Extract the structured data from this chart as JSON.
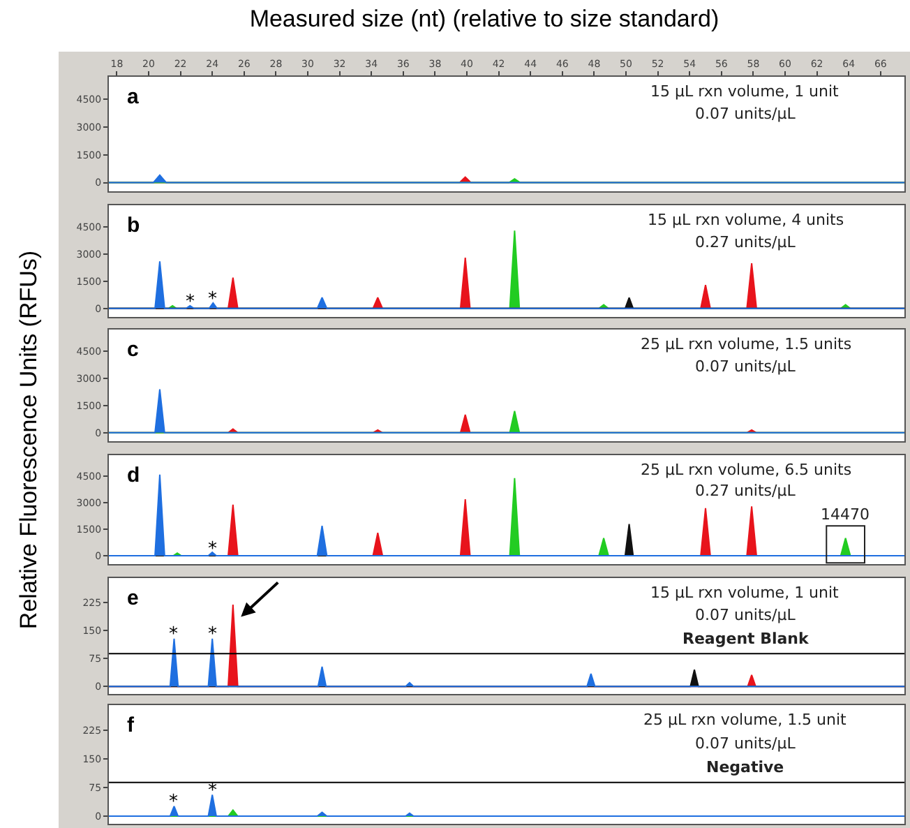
{
  "chart_data": [
    {
      "type": "area",
      "title": "a",
      "xlabel": "Measured size (nt) (relative to size standard)",
      "ylabel": "Relative Fluorescence Units (RFUs)",
      "xlim": [
        17.5,
        67.5
      ],
      "xticks": [
        18,
        20,
        22,
        24,
        26,
        28,
        30,
        32,
        34,
        36,
        38,
        40,
        42,
        44,
        46,
        48,
        50,
        52,
        54,
        56,
        58,
        60,
        62,
        64,
        66
      ],
      "ylim": [
        -470,
        5700
      ],
      "yticks": [
        0,
        1500,
        3000,
        4500
      ],
      "annotations": [
        "15 µL rxn volume, 1 unit",
        "0.07 units/µL"
      ],
      "series": [
        {
          "color": "#e8141c",
          "x": [
            17.5,
            39.55,
            39.9,
            40.25,
            67.5
          ],
          "values": [
            0,
            0,
            300,
            0,
            0
          ]
        },
        {
          "color": "#22cc22",
          "x": [
            17.5,
            42.65,
            43.0,
            43.35,
            67.5
          ],
          "values": [
            0,
            0,
            200,
            0,
            0
          ]
        },
        {
          "color": "#1f6fe0",
          "x": [
            17.5,
            20.3,
            20.7,
            21.1,
            67.5
          ],
          "values": [
            0,
            0,
            400,
            0,
            0
          ]
        }
      ]
    },
    {
      "type": "area",
      "title": "b",
      "xlim": [
        17.5,
        67.5
      ],
      "ylim": [
        -470,
        5700
      ],
      "yticks": [
        0,
        1500,
        3000,
        4500
      ],
      "tick_labels": "y",
      "annotations": [
        "15 µL rxn volume, 4 units",
        "0.27 units/µL",
        {
          "text": "*",
          "x": 22.6,
          "y": 150
        },
        {
          "text": "*",
          "x": 24.05,
          "y": 300
        }
      ],
      "series": [
        {
          "color": "#22cc22",
          "x": [
            17.5,
            21.25,
            21.5,
            21.75,
            42.7,
            43.0,
            43.3,
            48.3,
            48.6,
            48.9,
            63.5,
            63.8,
            64.1,
            67.5
          ],
          "values": [
            0,
            0,
            150,
            0,
            0,
            4300,
            0,
            0,
            200,
            0,
            0,
            200,
            0,
            0
          ]
        },
        {
          "color": "#e8141c",
          "x": [
            17.5,
            25.0,
            25.3,
            25.6,
            34.1,
            34.4,
            34.7,
            39.6,
            39.9,
            40.2,
            54.7,
            55.0,
            55.3,
            57.6,
            57.9,
            58.2,
            67.5
          ],
          "values": [
            0,
            0,
            1700,
            0,
            0,
            600,
            0,
            0,
            2800,
            0,
            0,
            1300,
            0,
            0,
            2500,
            0,
            0
          ]
        },
        {
          "color": "#111111",
          "x": [
            17.5,
            49.95,
            50.2,
            50.45,
            67.5
          ],
          "values": [
            0,
            0,
            600,
            0,
            0
          ]
        },
        {
          "color": "#1f6fe0",
          "x": [
            17.5,
            20.4,
            20.7,
            21.0,
            22.35,
            22.6,
            22.85,
            23.8,
            24.05,
            24.3,
            30.6,
            30.9,
            31.2,
            67.5
          ],
          "values": [
            0,
            0,
            2600,
            0,
            0,
            150,
            0,
            0,
            300,
            0,
            0,
            600,
            0,
            0
          ]
        }
      ]
    },
    {
      "type": "area",
      "title": "c",
      "xlim": [
        17.5,
        67.5
      ],
      "ylim": [
        -470,
        5700
      ],
      "yticks": [
        0,
        1500,
        3000,
        4500
      ],
      "tick_labels": "y",
      "annotations": [
        "25 µL rxn volume, 1.5 units",
        "0.07 units/µL"
      ],
      "series": [
        {
          "color": "#e8141c",
          "x": [
            17.5,
            25.0,
            25.3,
            25.6,
            34.1,
            34.4,
            34.7,
            39.6,
            39.9,
            40.2,
            57.6,
            57.9,
            58.2,
            67.5
          ],
          "values": [
            0,
            0,
            200,
            0,
            0,
            150,
            0,
            0,
            1000,
            0,
            0,
            150,
            0,
            0
          ]
        },
        {
          "color": "#22cc22",
          "x": [
            17.5,
            42.7,
            43.0,
            43.3,
            67.5
          ],
          "values": [
            0,
            0,
            1200,
            0,
            0
          ]
        },
        {
          "color": "#1f6fe0",
          "x": [
            17.5,
            20.4,
            20.7,
            21.0,
            67.5
          ],
          "values": [
            0,
            0,
            2400,
            0,
            0
          ]
        }
      ]
    },
    {
      "type": "area",
      "title": "d",
      "xlim": [
        17.5,
        67.5
      ],
      "ylim": [
        -470,
        5700
      ],
      "yticks": [
        0,
        1500,
        3000,
        4500
      ],
      "tick_labels": "y",
      "annotations": [
        "25 µL rxn volume, 6.5 units",
        "0.27 units/µL",
        {
          "text": "*",
          "x": 24.0,
          "y": 200
        },
        {
          "text": "14470",
          "x": 63.8,
          "y": 1000
        }
      ],
      "series": [
        {
          "color": "#22cc22",
          "x": [
            17.5,
            21.55,
            21.8,
            22.05,
            42.7,
            43.0,
            43.3,
            48.3,
            48.6,
            48.9,
            63.5,
            63.8,
            64.1,
            67.5
          ],
          "values": [
            0,
            0,
            150,
            0,
            0,
            4400,
            0,
            0,
            1000,
            0,
            0,
            1000,
            0,
            0
          ]
        },
        {
          "color": "#e8141c",
          "x": [
            17.5,
            25.0,
            25.3,
            25.6,
            34.1,
            34.4,
            34.7,
            39.6,
            39.9,
            40.2,
            54.7,
            55.0,
            55.3,
            57.6,
            57.9,
            58.2,
            67.5
          ],
          "values": [
            0,
            0,
            2900,
            0,
            0,
            1300,
            0,
            0,
            3200,
            0,
            0,
            2700,
            0,
            0,
            2800,
            0,
            0
          ]
        },
        {
          "color": "#111111",
          "x": [
            17.5,
            49.95,
            50.2,
            50.45,
            67.5
          ],
          "values": [
            0,
            0,
            1800,
            0,
            0
          ]
        },
        {
          "color": "#1f6fe0",
          "x": [
            17.5,
            20.4,
            20.7,
            21.0,
            23.75,
            24.0,
            24.25,
            30.6,
            30.9,
            31.2,
            67.5
          ],
          "values": [
            0,
            0,
            4600,
            0,
            0,
            200,
            0,
            0,
            1700,
            0,
            0
          ]
        }
      ]
    },
    {
      "type": "area",
      "title": "e",
      "xlim": [
        17.5,
        67.5
      ],
      "ylim": [
        -20,
        290
      ],
      "yticks": [
        0,
        75,
        150,
        225
      ],
      "tick_labels": "y",
      "annotations": [
        "15 µL rxn volume, 1 unit",
        "0.07 units/µL",
        "Reagent Blank",
        {
          "text": "*",
          "x": 21.6,
          "y": 128
        },
        {
          "text": "*",
          "x": 24.0,
          "y": 128
        }
      ],
      "ref_lines": [
        {
          "axis": "y",
          "value": 88,
          "color": "#000000"
        }
      ],
      "series": [
        {
          "color": "#e8141c",
          "x": [
            17.5,
            25.0,
            25.3,
            25.6,
            57.65,
            57.9,
            58.15,
            67.5
          ],
          "values": [
            0,
            0,
            219,
            0,
            0,
            31,
            0,
            0
          ]
        },
        {
          "color": "#111111",
          "x": [
            17.5,
            54.05,
            54.3,
            54.55,
            67.5
          ],
          "values": [
            0,
            0,
            45,
            0,
            0
          ]
        },
        {
          "color": "#1f6fe0",
          "x": [
            17.5,
            21.35,
            21.6,
            21.85,
            23.75,
            24.0,
            24.25,
            30.65,
            30.9,
            31.15,
            36.15,
            36.4,
            36.65,
            47.55,
            47.8,
            48.05,
            67.5
          ],
          "values": [
            0,
            0,
            128,
            0,
            0,
            128,
            0,
            0,
            53,
            0,
            0,
            10,
            0,
            0,
            34,
            0,
            0
          ]
        }
      ]
    },
    {
      "type": "area",
      "title": "f",
      "xlim": [
        17.5,
        67.5
      ],
      "ylim": [
        -20,
        290
      ],
      "yticks": [
        0,
        75,
        150,
        225
      ],
      "tick_labels": "y",
      "annotations": [
        "25 µL rxn volume, 1.5 unit",
        "0.07 units/µL",
        "Negative",
        {
          "text": "*",
          "x": 21.6,
          "y": 26
        },
        {
          "text": "*",
          "x": 24.0,
          "y": 56
        }
      ],
      "ref_lines": [
        {
          "axis": "y",
          "value": 88,
          "color": "#000000"
        }
      ],
      "series": [
        {
          "color": "#22cc22",
          "x": [
            17.5,
            25.0,
            25.3,
            25.6,
            67.5
          ],
          "values": [
            0,
            0,
            16,
            0,
            0
          ]
        },
        {
          "color": "#1f6fe0",
          "x": [
            17.5,
            21.35,
            21.6,
            21.85,
            23.75,
            24.0,
            24.25,
            30.6,
            30.9,
            31.2,
            36.15,
            36.4,
            36.65,
            67.5
          ],
          "values": [
            0,
            0,
            26,
            0,
            0,
            56,
            0,
            0,
            10,
            0,
            0,
            8,
            0,
            0
          ]
        }
      ]
    }
  ]
}
